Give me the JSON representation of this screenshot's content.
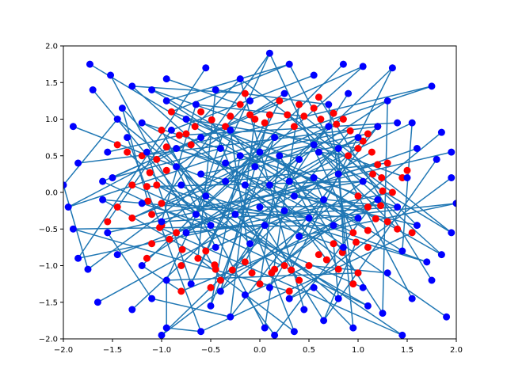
{
  "chart_data": {
    "type": "scatter",
    "title": "",
    "xlabel": "",
    "ylabel": "",
    "xlim": [
      -2.0,
      2.0
    ],
    "ylim": [
      -2.0,
      2.0
    ],
    "grid": false,
    "legend": "none",
    "x_ticks": [
      "−2.0",
      "−1.5",
      "−1.0",
      "−0.5",
      "0.0",
      "0.5",
      "1.0",
      "1.5",
      "2.0"
    ],
    "y_ticks": [
      "−2.0",
      "−1.5",
      "−1.0",
      "−0.5",
      "0.0",
      "0.5",
      "1.0",
      "1.5",
      "2.0"
    ],
    "x_tick_values": [
      -2.0,
      -1.5,
      -1.0,
      -0.5,
      0.0,
      0.5,
      1.0,
      1.5,
      2.0
    ],
    "y_tick_values": [
      -2.0,
      -1.5,
      -1.0,
      -0.5,
      0.0,
      0.5,
      1.0,
      1.5,
      2.0
    ],
    "colors": {
      "red_points": "#ff0000",
      "blue_points": "#0000ff",
      "lines": "#1f77b4",
      "axes": "#000000"
    },
    "series": [
      {
        "color": "#ff0000",
        "description_points": "inner ring points",
        "points": [
          [
            0.45,
            1.04
          ],
          [
            0.62,
            1.0
          ],
          [
            0.78,
            0.93
          ],
          [
            0.92,
            0.84
          ],
          [
            1.05,
            0.7
          ],
          [
            1.14,
            0.55
          ],
          [
            1.2,
            0.38
          ],
          [
            1.24,
            0.2
          ],
          [
            1.25,
            0.02
          ],
          [
            1.23,
            -0.18
          ],
          [
            1.18,
            -0.36
          ],
          [
            1.1,
            -0.52
          ],
          [
            0.98,
            -0.68
          ],
          [
            0.84,
            -0.82
          ],
          [
            0.68,
            -0.92
          ],
          [
            0.5,
            -1.0
          ],
          [
            0.32,
            -1.06
          ],
          [
            0.12,
            -1.1
          ],
          [
            -0.08,
            -1.1
          ],
          [
            -0.28,
            -1.06
          ],
          [
            -0.46,
            -0.99
          ],
          [
            -0.63,
            -0.9
          ],
          [
            -0.79,
            -0.78
          ],
          [
            -0.92,
            -0.64
          ],
          [
            -1.02,
            -0.48
          ],
          [
            -1.1,
            -0.3
          ],
          [
            -1.14,
            -0.12
          ],
          [
            -1.15,
            0.08
          ],
          [
            -1.12,
            0.27
          ],
          [
            -1.05,
            0.45
          ],
          [
            -0.95,
            0.62
          ],
          [
            -0.82,
            0.78
          ],
          [
            -0.66,
            0.9
          ],
          [
            -0.49,
            0.99
          ],
          [
            -0.3,
            1.04
          ],
          [
            -0.1,
            1.06
          ],
          [
            0.1,
            1.06
          ],
          [
            0.28,
            1.06
          ],
          [
            0.55,
            1.15
          ],
          [
            0.85,
            1.0
          ],
          [
            1.1,
            0.8
          ],
          [
            1.3,
            0.4
          ],
          [
            1.35,
            0.0
          ],
          [
            1.3,
            -0.4
          ],
          [
            1.1,
            -0.75
          ],
          [
            0.8,
            -1.05
          ],
          [
            0.4,
            -1.2
          ],
          [
            0.0,
            -1.25
          ],
          [
            -0.4,
            -1.2
          ],
          [
            -0.8,
            -1.0
          ],
          [
            -1.1,
            -0.7
          ],
          [
            -1.3,
            -0.35
          ],
          [
            -1.3,
            0.1
          ],
          [
            -1.2,
            0.5
          ],
          [
            -1.0,
            0.85
          ],
          [
            -0.6,
            1.1
          ],
          [
            -0.2,
            1.2
          ],
          [
            0.2,
            1.25
          ],
          [
            0.4,
            1.2
          ],
          [
            0.75,
            1.08
          ],
          [
            1.0,
            0.6
          ],
          [
            1.15,
            0.25
          ],
          [
            1.1,
            -0.2
          ],
          [
            0.95,
            -0.55
          ],
          [
            0.6,
            -0.85
          ],
          [
            0.25,
            -1.0
          ],
          [
            -0.15,
            -0.95
          ],
          [
            -0.55,
            -0.8
          ],
          [
            -0.85,
            -0.55
          ],
          [
            -1.0,
            -0.15
          ],
          [
            -0.95,
            0.3
          ],
          [
            -0.7,
            0.65
          ],
          [
            -0.35,
            0.9
          ],
          [
            0.05,
            0.95
          ],
          [
            0.6,
            1.3
          ],
          [
            1.2,
            0.9
          ],
          [
            1.45,
            0.2
          ],
          [
            1.4,
            -0.5
          ],
          [
            1.0,
            -1.1
          ],
          [
            0.3,
            -1.35
          ],
          [
            -0.5,
            -1.3
          ],
          [
            -1.15,
            -0.9
          ],
          [
            -1.45,
            -0.2
          ],
          [
            -1.35,
            0.55
          ],
          [
            -0.9,
            1.1
          ],
          [
            -0.15,
            1.35
          ],
          [
            0.35,
            0.9
          ],
          [
            0.9,
            0.5
          ],
          [
            1.0,
            -0.05
          ],
          [
            0.75,
            -0.7
          ],
          [
            0.15,
            -1.05
          ],
          [
            -0.45,
            -1.05
          ],
          [
            -1.0,
            -0.45
          ],
          [
            -1.05,
            0.1
          ],
          [
            -0.75,
            0.8
          ],
          [
            -0.05,
            1.0
          ],
          [
            1.55,
            -0.55
          ],
          [
            -1.45,
            0.65
          ],
          [
            0.95,
            -1.25
          ],
          [
            -0.8,
            -1.35
          ],
          [
            -1.55,
            -0.4
          ],
          [
            1.5,
            0.3
          ]
        ]
      },
      {
        "color": "#0000ff",
        "description_points": "outer scattered points",
        "points": [
          [
            -1.73,
            1.75
          ],
          [
            -1.52,
            1.6
          ],
          [
            -1.3,
            1.45
          ],
          [
            -1.1,
            1.4
          ],
          [
            -0.95,
            1.25
          ],
          [
            -0.65,
            1.2
          ],
          [
            -0.45,
            1.4
          ],
          [
            -0.2,
            1.55
          ],
          [
            0.1,
            1.9
          ],
          [
            0.3,
            1.75
          ],
          [
            0.55,
            1.6
          ],
          [
            0.85,
            1.75
          ],
          [
            1.05,
            1.72
          ],
          [
            1.35,
            1.7
          ],
          [
            1.75,
            1.45
          ],
          [
            1.85,
            0.82
          ],
          [
            1.8,
            0.45
          ],
          [
            1.95,
            0.2
          ],
          [
            2.0,
            -0.15
          ],
          [
            1.95,
            -0.55
          ],
          [
            1.85,
            -0.85
          ],
          [
            1.75,
            -1.2
          ],
          [
            1.55,
            -1.45
          ],
          [
            1.25,
            -1.65
          ],
          [
            0.95,
            -1.85
          ],
          [
            0.65,
            -1.75
          ],
          [
            0.35,
            -1.9
          ],
          [
            0.05,
            -1.85
          ],
          [
            -0.3,
            -1.7
          ],
          [
            -0.6,
            -1.9
          ],
          [
            -0.95,
            -1.85
          ],
          [
            -1.3,
            -1.6
          ],
          [
            -1.65,
            -1.5
          ],
          [
            -1.85,
            -0.9
          ],
          [
            -1.9,
            -0.5
          ],
          [
            -1.95,
            -0.2
          ],
          [
            -1.85,
            0.4
          ],
          [
            -1.9,
            0.9
          ],
          [
            -1.7,
            1.4
          ],
          [
            -1.4,
            1.15
          ],
          [
            -1.2,
            0.95
          ],
          [
            -0.9,
            0.85
          ],
          [
            -0.6,
            0.75
          ],
          [
            -0.4,
            0.6
          ],
          [
            -0.2,
            0.5
          ],
          [
            0.0,
            0.55
          ],
          [
            0.2,
            0.5
          ],
          [
            0.4,
            0.45
          ],
          [
            0.6,
            0.55
          ],
          [
            0.8,
            0.6
          ],
          [
            1.0,
            0.75
          ],
          [
            1.2,
            0.9
          ],
          [
            1.4,
            0.95
          ],
          [
            1.6,
            0.6
          ],
          [
            1.5,
            0.2
          ],
          [
            1.4,
            -0.2
          ],
          [
            1.6,
            -0.45
          ],
          [
            1.45,
            -0.8
          ],
          [
            1.3,
            -1.1
          ],
          [
            1.05,
            -1.3
          ],
          [
            0.8,
            -1.45
          ],
          [
            0.55,
            -1.3
          ],
          [
            0.3,
            -1.45
          ],
          [
            0.1,
            -1.3
          ],
          [
            -0.15,
            -1.4
          ],
          [
            -0.4,
            -1.35
          ],
          [
            -0.7,
            -1.25
          ],
          [
            -0.95,
            -1.2
          ],
          [
            -1.2,
            -1.0
          ],
          [
            -1.45,
            -0.85
          ],
          [
            -1.55,
            -0.55
          ],
          [
            -1.6,
            -0.1
          ],
          [
            -1.5,
            0.2
          ],
          [
            -1.55,
            0.55
          ],
          [
            -1.35,
            0.75
          ],
          [
            -1.15,
            0.55
          ],
          [
            -0.85,
            0.35
          ],
          [
            -0.6,
            0.25
          ],
          [
            -0.35,
            0.15
          ],
          [
            -0.15,
            0.1
          ],
          [
            0.1,
            0.1
          ],
          [
            0.3,
            0.15
          ],
          [
            0.55,
            0.2
          ],
          [
            0.8,
            0.25
          ],
          [
            1.05,
            0.15
          ],
          [
            1.2,
            -0.1
          ],
          [
            1.0,
            -0.35
          ],
          [
            0.75,
            -0.45
          ],
          [
            0.5,
            -0.35
          ],
          [
            0.25,
            -0.25
          ],
          [
            0.0,
            -0.2
          ],
          [
            -0.25,
            -0.3
          ],
          [
            -0.5,
            -0.45
          ],
          [
            -0.75,
            -0.55
          ],
          [
            -1.0,
            -0.4
          ],
          [
            -1.2,
            -0.15
          ],
          [
            -0.8,
            0.1
          ],
          [
            -0.55,
            -0.05
          ],
          [
            0.65,
            -0.1
          ],
          [
            0.4,
            -0.6
          ],
          [
            -0.1,
            -0.7
          ],
          [
            -0.45,
            -0.75
          ],
          [
            0.15,
            0.75
          ],
          [
            -0.3,
            0.85
          ],
          [
            0.7,
            0.9
          ],
          [
            -0.75,
            1.0
          ],
          [
            1.3,
            1.25
          ],
          [
            -1.45,
            1.0
          ],
          [
            1.7,
            -0.95
          ],
          [
            -1.75,
            -1.05
          ],
          [
            0.25,
            1.35
          ],
          [
            -0.1,
            1.25
          ],
          [
            0.45,
            -1.6
          ],
          [
            -0.5,
            -1.55
          ],
          [
            1.55,
            0.95
          ],
          [
            -1.6,
            0.15
          ],
          [
            0.9,
            1.35
          ],
          [
            -0.95,
            1.55
          ],
          [
            1.1,
            -1.55
          ],
          [
            -1.1,
            -1.45
          ],
          [
            0.05,
            -0.45
          ],
          [
            -0.05,
            0.35
          ],
          [
            0.35,
            -0.05
          ],
          [
            -0.35,
            0.4
          ],
          [
            0.55,
            0.65
          ],
          [
            -0.65,
            -0.3
          ],
          [
            0.85,
            -0.75
          ],
          [
            -0.85,
            0.6
          ],
          [
            1.9,
            -1.7
          ],
          [
            1.45,
            -1.95
          ],
          [
            -1.0,
            -1.95
          ],
          [
            0.7,
            1.2
          ],
          [
            -0.55,
            1.7
          ],
          [
            1.95,
            0.55
          ],
          [
            -2.0,
            0.1
          ],
          [
            0.15,
            -1.95
          ]
        ]
      }
    ]
  }
}
